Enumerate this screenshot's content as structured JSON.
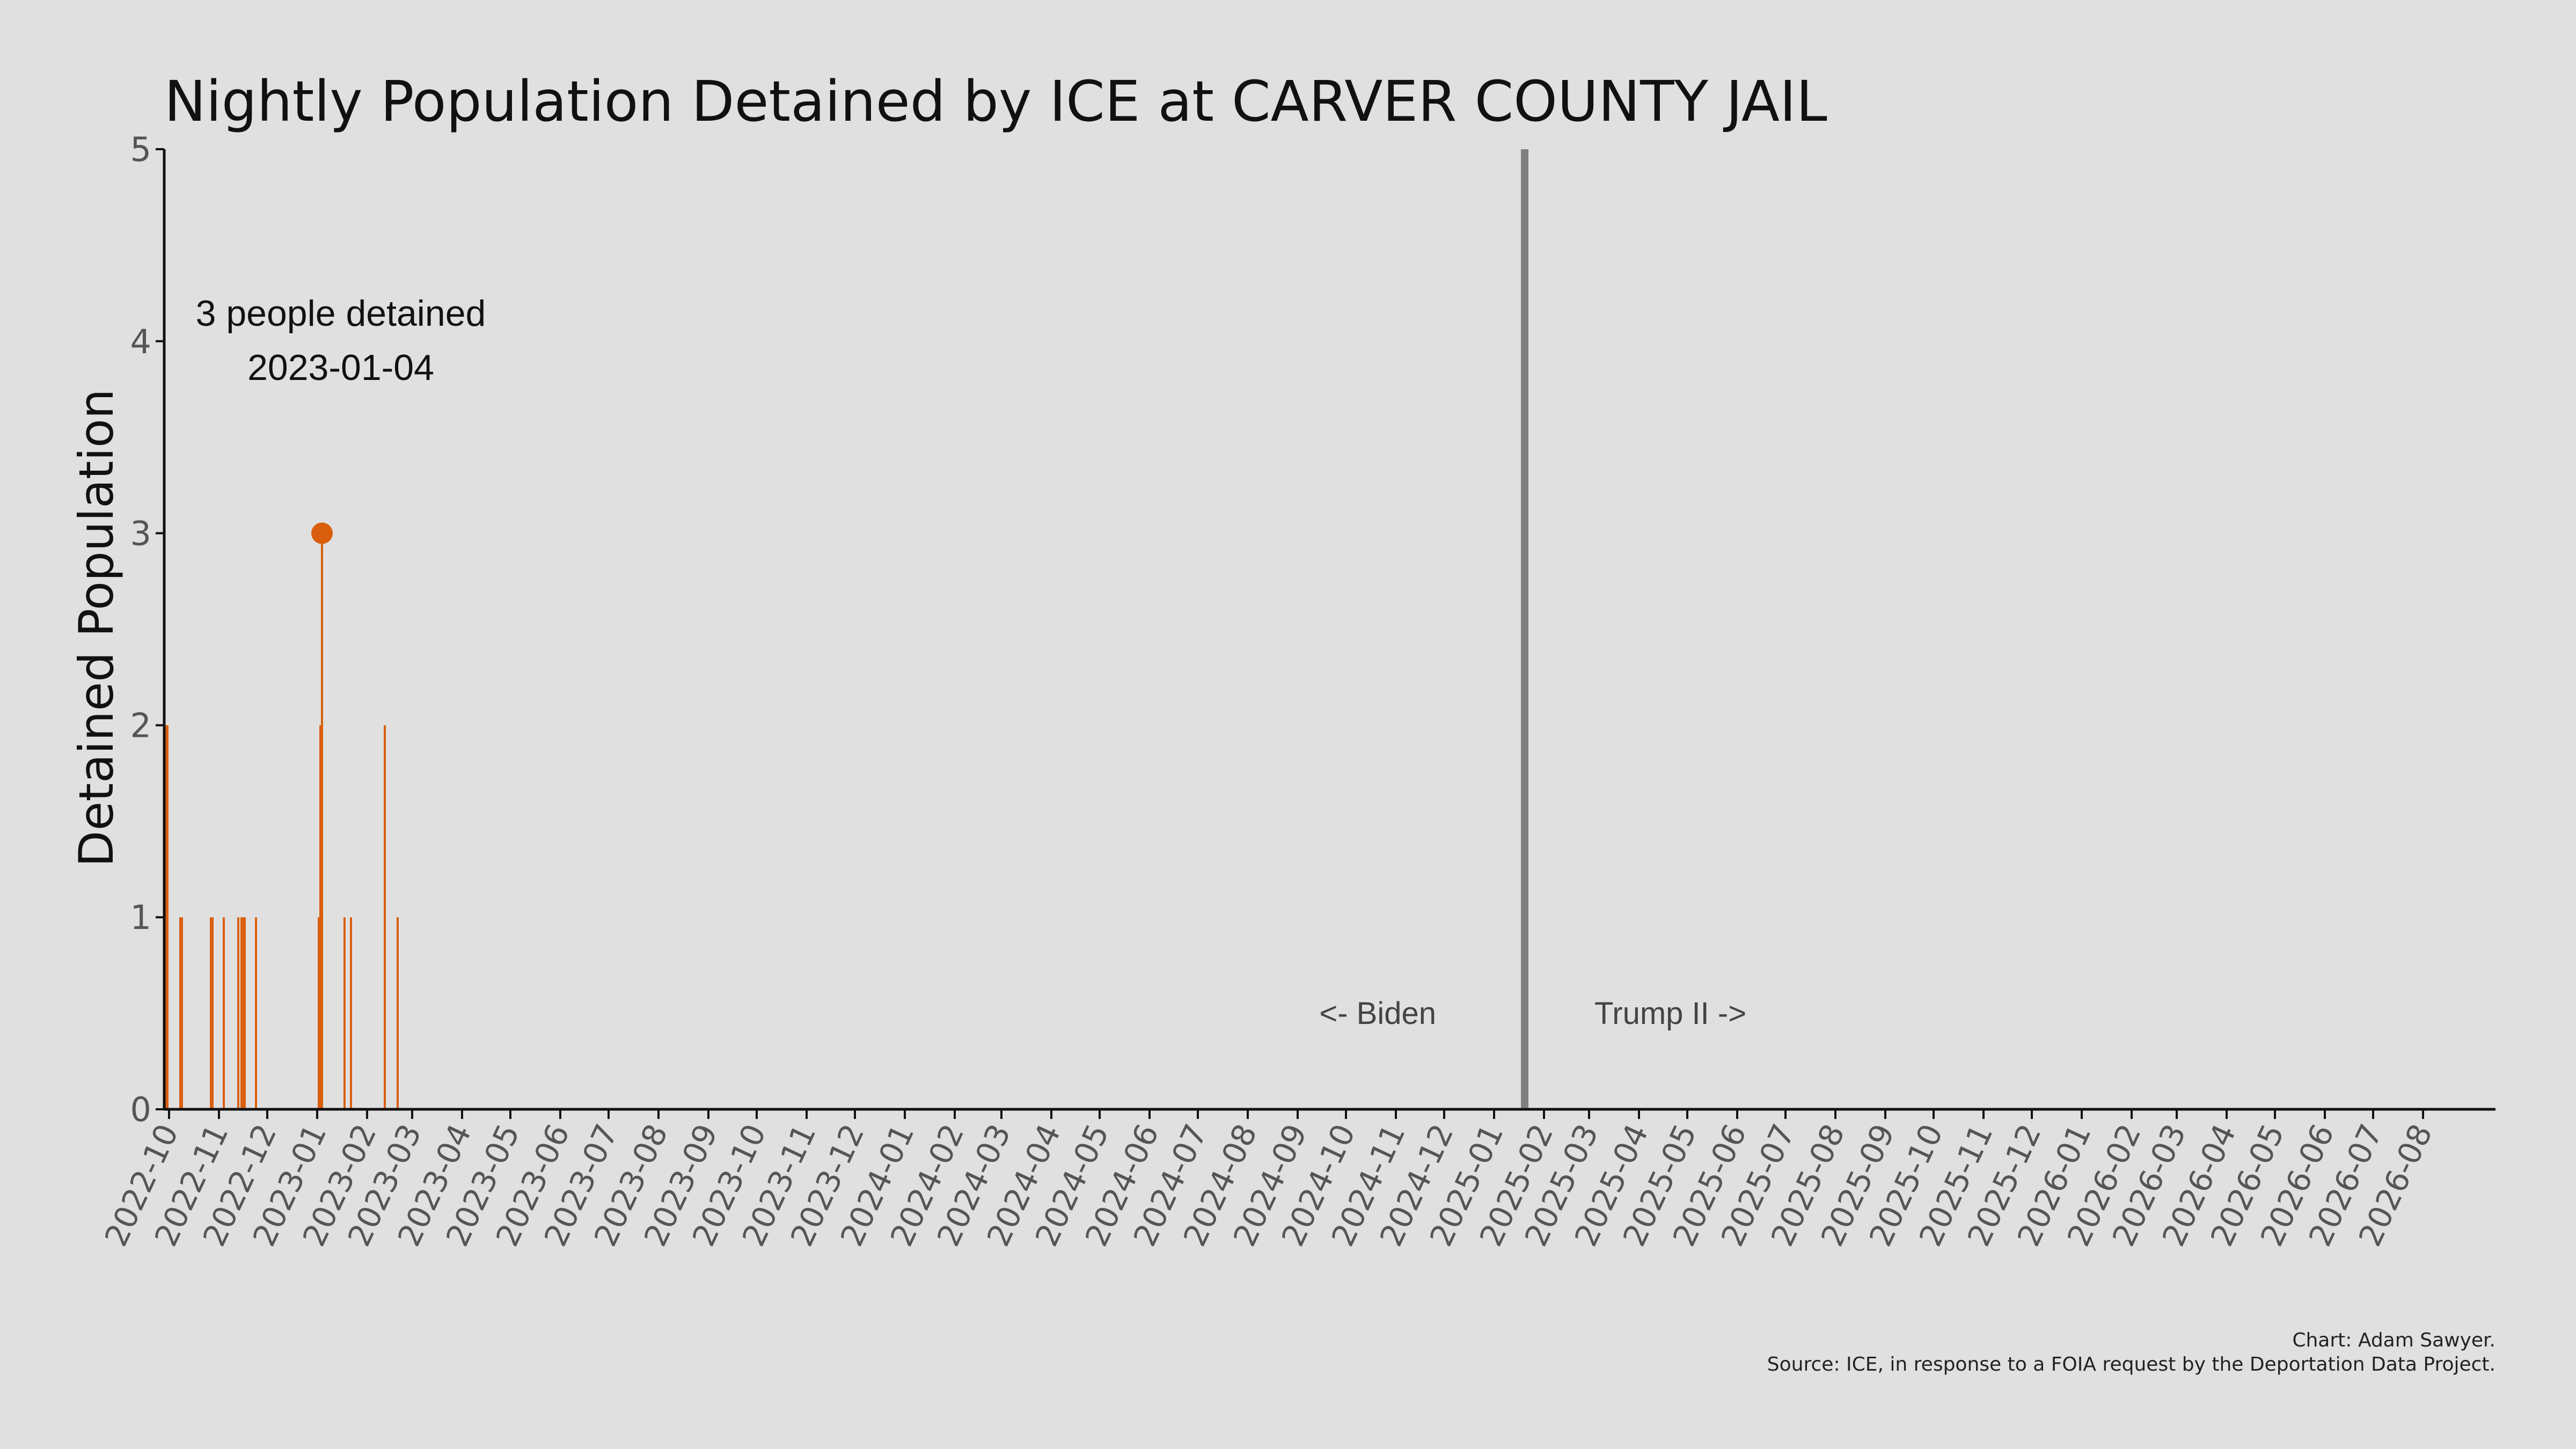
{
  "chart_data": {
    "type": "bar",
    "title": "Nightly Population Detained by ICE at CARVER COUNTY JAIL",
    "ylabel": "Detained Population",
    "xlabel": "",
    "ylim": [
      0,
      5
    ],
    "yticks": [
      0,
      1,
      2,
      3,
      4,
      5
    ],
    "xlim": [
      "2022-09-28",
      "2026-09-15"
    ],
    "xtick_labels": [
      "2022-10",
      "2022-11",
      "2022-12",
      "2023-01",
      "2023-02",
      "2023-03",
      "2023-04",
      "2023-05",
      "2023-06",
      "2023-07",
      "2023-08",
      "2023-09",
      "2023-10",
      "2023-11",
      "2023-12",
      "2024-01",
      "2024-02",
      "2024-03",
      "2024-04",
      "2024-05",
      "2024-06",
      "2024-07",
      "2024-08",
      "2024-09",
      "2024-10",
      "2024-11",
      "2024-12",
      "2025-01",
      "2025-02",
      "2025-03",
      "2025-04",
      "2025-05",
      "2025-06",
      "2025-07",
      "2025-08",
      "2025-09",
      "2025-10",
      "2025-11",
      "2025-12",
      "2026-01",
      "2026-02",
      "2026-03",
      "2026-04",
      "2026-05",
      "2026-06",
      "2026-07",
      "2026-08"
    ],
    "grid": false,
    "bar_color": "#d95f0e",
    "series": [
      {
        "points": [
          {
            "date": "2022-09-29",
            "value": 2
          },
          {
            "date": "2022-09-30",
            "value": 2
          },
          {
            "date": "2022-10-08",
            "value": 1
          },
          {
            "date": "2022-10-09",
            "value": 1
          },
          {
            "date": "2022-10-27",
            "value": 1
          },
          {
            "date": "2022-10-28",
            "value": 1
          },
          {
            "date": "2022-11-04",
            "value": 1
          },
          {
            "date": "2022-11-13",
            "value": 1
          },
          {
            "date": "2022-11-15",
            "value": 1
          },
          {
            "date": "2022-11-16",
            "value": 1
          },
          {
            "date": "2022-11-17",
            "value": 1
          },
          {
            "date": "2022-11-24",
            "value": 1
          },
          {
            "date": "2023-01-02",
            "value": 1
          },
          {
            "date": "2023-01-03",
            "value": 2
          },
          {
            "date": "2023-01-04",
            "value": 3
          },
          {
            "date": "2023-01-18",
            "value": 1
          },
          {
            "date": "2023-01-22",
            "value": 1
          },
          {
            "date": "2023-02-12",
            "value": 2
          },
          {
            "date": "2023-02-20",
            "value": 1
          }
        ]
      }
    ],
    "highlight": {
      "date": "2023-01-04",
      "value": 3,
      "color": "#d95f0e"
    },
    "annotation": {
      "line1": "3 people detained",
      "line2": "2023-01-04"
    },
    "divider": {
      "date": "2025-01-20",
      "color": "#808080"
    },
    "era_labels": {
      "left": "<- Biden",
      "right": "Trump II ->"
    }
  },
  "credits": {
    "line1": "Chart: Adam Sawyer.",
    "line2": "Source: ICE, in response to a FOIA request by the Deportation Data Project."
  }
}
